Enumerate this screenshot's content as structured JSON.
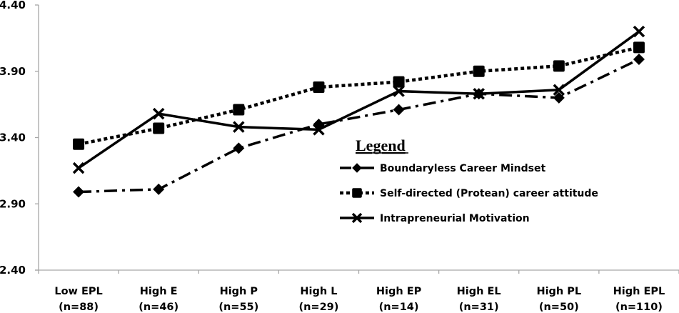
{
  "chart_data": {
    "type": "line",
    "title": "",
    "xlabel": "",
    "ylabel": "",
    "ylim": [
      2.4,
      4.4
    ],
    "yticks": [
      "4.40",
      "3.90",
      "3.40",
      "2.90",
      "2.40"
    ],
    "grid": false,
    "legend_position": "inside-right-middle",
    "legend_title": "Legend",
    "categories": [
      {
        "label": "Low EPL",
        "n": "(n=88)"
      },
      {
        "label": "High E",
        "n": "(n=46)"
      },
      {
        "label": "High P",
        "n": "(n=55)"
      },
      {
        "label": "High L",
        "n": "(n=29)"
      },
      {
        "label": "High EP",
        "n": "(n=14)"
      },
      {
        "label": "High EL",
        "n": "(n=31)"
      },
      {
        "label": "High PL",
        "n": "(n=50)"
      },
      {
        "label": "High EPL",
        "n": "(n=110)"
      }
    ],
    "series": [
      {
        "name": "Boundaryless Career Mindset",
        "marker": "diamond",
        "line_style": "dash-dot",
        "color": "#000000",
        "values": [
          2.99,
          3.01,
          3.32,
          3.5,
          3.61,
          3.73,
          3.7,
          3.99
        ]
      },
      {
        "name": "Self-directed (Protean) career attitude",
        "marker": "square",
        "line_style": "dotted",
        "color": "#000000",
        "values": [
          3.35,
          3.47,
          3.61,
          3.78,
          3.82,
          3.9,
          3.94,
          4.08
        ]
      },
      {
        "name": "Intrapreneurial Motivation",
        "marker": "x",
        "line_style": "solid",
        "color": "#000000",
        "values": [
          3.17,
          3.58,
          3.48,
          3.46,
          3.75,
          3.73,
          3.76,
          4.2
        ]
      }
    ]
  }
}
